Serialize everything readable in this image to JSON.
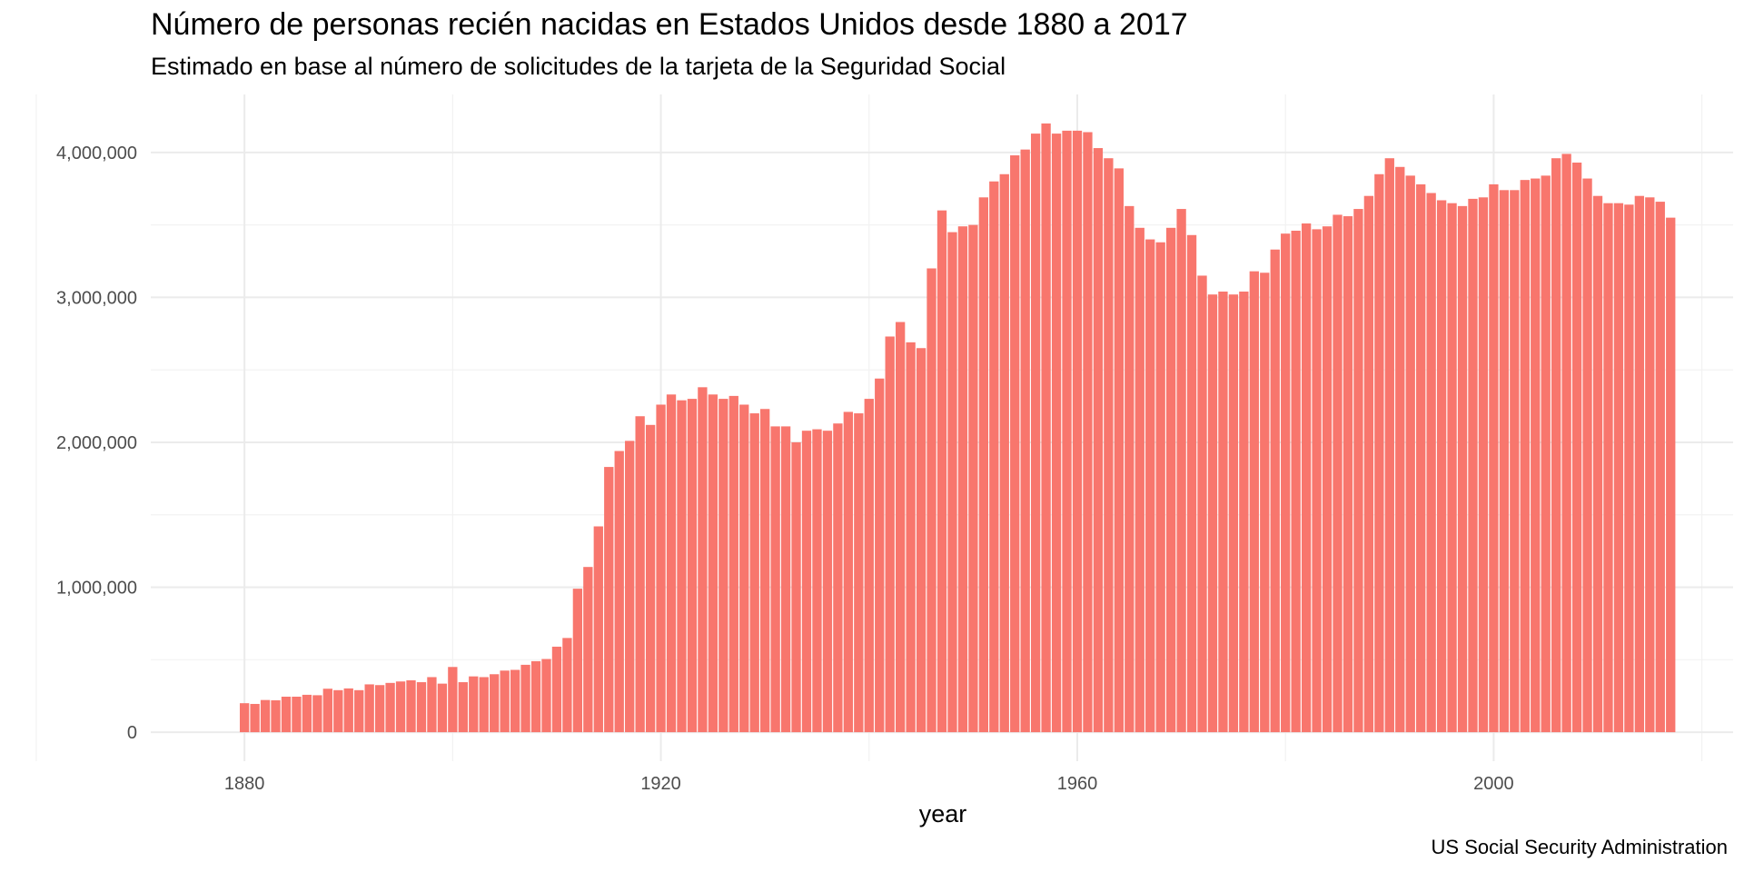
{
  "chart_data": {
    "type": "bar",
    "title": "Número de personas recién nacidas en Estados Unidos desde 1880 a 2017",
    "subtitle": "Estimado en base al número de solicitudes de la tarjeta de la Seguridad Social",
    "caption": "US Social Security Administration",
    "xlabel": "year",
    "ylabel": "",
    "bar_color": "#F8766D",
    "grid": true,
    "legend": "none",
    "x_ticks": [
      1880,
      1920,
      1960,
      2000
    ],
    "x_tick_labels": [
      "1880",
      "1920",
      "1960",
      "2000"
    ],
    "y_ticks": [
      0,
      1000000,
      2000000,
      3000000,
      4000000
    ],
    "y_tick_labels": [
      "0",
      "1,000,000",
      "2,000,000",
      "3,000,000",
      "4,000,000"
    ],
    "xlim": [
      1871,
      2023
    ],
    "ylim": [
      -200000,
      4400000
    ],
    "x_start": 1880,
    "values": [
      200000,
      195000,
      222000,
      220000,
      245000,
      245000,
      258000,
      255000,
      300000,
      290000,
      302000,
      290000,
      330000,
      325000,
      340000,
      350000,
      358000,
      345000,
      380000,
      335000,
      450000,
      345000,
      385000,
      380000,
      400000,
      425000,
      430000,
      465000,
      490000,
      505000,
      590000,
      650000,
      990000,
      1140000,
      1420000,
      1830000,
      1940000,
      2010000,
      2180000,
      2120000,
      2260000,
      2330000,
      2290000,
      2300000,
      2380000,
      2330000,
      2300000,
      2320000,
      2260000,
      2200000,
      2230000,
      2110000,
      2110000,
      2000000,
      2080000,
      2090000,
      2080000,
      2130000,
      2210000,
      2200000,
      2300000,
      2440000,
      2730000,
      2830000,
      2690000,
      2650000,
      3200000,
      3600000,
      3450000,
      3490000,
      3500000,
      3690000,
      3800000,
      3850000,
      3980000,
      4020000,
      4130000,
      4200000,
      4130000,
      4150000,
      4150000,
      4140000,
      4030000,
      3960000,
      3890000,
      3630000,
      3480000,
      3400000,
      3380000,
      3480000,
      3610000,
      3430000,
      3150000,
      3020000,
      3040000,
      3020000,
      3040000,
      3180000,
      3170000,
      3330000,
      3440000,
      3460000,
      3510000,
      3470000,
      3490000,
      3570000,
      3560000,
      3610000,
      3700000,
      3850000,
      3960000,
      3900000,
      3840000,
      3780000,
      3720000,
      3670000,
      3650000,
      3630000,
      3680000,
      3690000,
      3780000,
      3740000,
      3740000,
      3810000,
      3820000,
      3840000,
      3960000,
      3990000,
      3930000,
      3820000,
      3700000,
      3650000,
      3650000,
      3640000,
      3700000,
      3690000,
      3660000,
      3550000
    ]
  }
}
